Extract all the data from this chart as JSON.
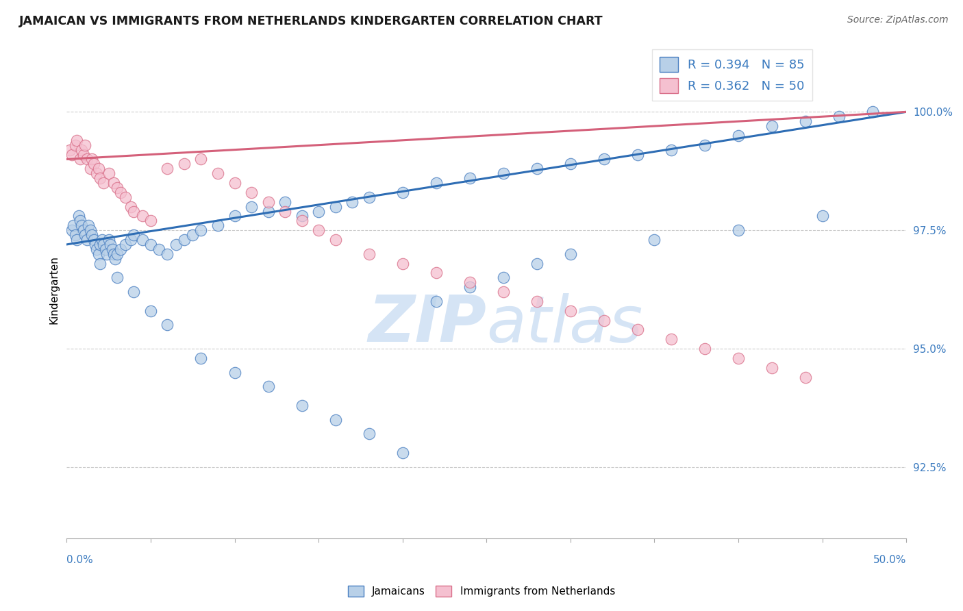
{
  "title": "JAMAICAN VS IMMIGRANTS FROM NETHERLANDS KINDERGARTEN CORRELATION CHART",
  "source": "Source: ZipAtlas.com",
  "ylabel": "Kindergarten",
  "legend1_label": "R = 0.394   N = 85",
  "legend2_label": "R = 0.362   N = 50",
  "blue_fill_color": "#b8d0e8",
  "pink_fill_color": "#f5c0d0",
  "blue_edge_color": "#4a7fc1",
  "pink_edge_color": "#d9708a",
  "blue_line_color": "#2e6db4",
  "pink_line_color": "#d4607a",
  "text_color": "#3a7abf",
  "watermark_color": "#d5e4f5",
  "xlim": [
    0.0,
    50.0
  ],
  "ylim": [
    91.0,
    101.5
  ],
  "yticks": [
    100.0,
    97.5,
    95.0,
    92.5
  ],
  "blue_x": [
    0.3,
    0.4,
    0.5,
    0.6,
    0.7,
    0.8,
    0.9,
    1.0,
    1.1,
    1.2,
    1.3,
    1.4,
    1.5,
    1.6,
    1.7,
    1.8,
    1.9,
    2.0,
    2.1,
    2.2,
    2.3,
    2.4,
    2.5,
    2.6,
    2.7,
    2.8,
    2.9,
    3.0,
    3.2,
    3.5,
    3.8,
    4.0,
    4.5,
    5.0,
    5.5,
    6.0,
    6.5,
    7.0,
    7.5,
    8.0,
    9.0,
    10.0,
    11.0,
    12.0,
    13.0,
    14.0,
    15.0,
    16.0,
    17.0,
    18.0,
    20.0,
    22.0,
    24.0,
    26.0,
    28.0,
    30.0,
    32.0,
    34.0,
    36.0,
    38.0,
    40.0,
    42.0,
    44.0,
    46.0,
    48.0,
    2.0,
    3.0,
    4.0,
    5.0,
    6.0,
    8.0,
    10.0,
    12.0,
    14.0,
    16.0,
    18.0,
    20.0,
    22.0,
    24.0,
    26.0,
    28.0,
    30.0,
    35.0,
    40.0,
    45.0
  ],
  "blue_y": [
    97.5,
    97.6,
    97.4,
    97.3,
    97.8,
    97.7,
    97.6,
    97.5,
    97.4,
    97.3,
    97.6,
    97.5,
    97.4,
    97.3,
    97.2,
    97.1,
    97.0,
    97.2,
    97.3,
    97.2,
    97.1,
    97.0,
    97.3,
    97.2,
    97.1,
    97.0,
    96.9,
    97.0,
    97.1,
    97.2,
    97.3,
    97.4,
    97.3,
    97.2,
    97.1,
    97.0,
    97.2,
    97.3,
    97.4,
    97.5,
    97.6,
    97.8,
    98.0,
    97.9,
    98.1,
    97.8,
    97.9,
    98.0,
    98.1,
    98.2,
    98.3,
    98.5,
    98.6,
    98.7,
    98.8,
    98.9,
    99.0,
    99.1,
    99.2,
    99.3,
    99.5,
    99.7,
    99.8,
    99.9,
    100.0,
    96.8,
    96.5,
    96.2,
    95.8,
    95.5,
    94.8,
    94.5,
    94.2,
    93.8,
    93.5,
    93.2,
    92.8,
    96.0,
    96.3,
    96.5,
    96.8,
    97.0,
    97.3,
    97.5,
    97.8
  ],
  "pink_x": [
    0.2,
    0.3,
    0.5,
    0.6,
    0.8,
    0.9,
    1.0,
    1.1,
    1.2,
    1.4,
    1.5,
    1.6,
    1.8,
    1.9,
    2.0,
    2.2,
    2.5,
    2.8,
    3.0,
    3.2,
    3.5,
    3.8,
    4.0,
    4.5,
    5.0,
    6.0,
    7.0,
    8.0,
    9.0,
    10.0,
    11.0,
    12.0,
    13.0,
    14.0,
    15.0,
    16.0,
    18.0,
    20.0,
    22.0,
    24.0,
    26.0,
    28.0,
    30.0,
    32.0,
    34.0,
    36.0,
    38.0,
    40.0,
    42.0,
    44.0
  ],
  "pink_y": [
    99.2,
    99.1,
    99.3,
    99.4,
    99.0,
    99.2,
    99.1,
    99.3,
    99.0,
    98.8,
    99.0,
    98.9,
    98.7,
    98.8,
    98.6,
    98.5,
    98.7,
    98.5,
    98.4,
    98.3,
    98.2,
    98.0,
    97.9,
    97.8,
    97.7,
    98.8,
    98.9,
    99.0,
    98.7,
    98.5,
    98.3,
    98.1,
    97.9,
    97.7,
    97.5,
    97.3,
    97.0,
    96.8,
    96.6,
    96.4,
    96.2,
    96.0,
    95.8,
    95.6,
    95.4,
    95.2,
    95.0,
    94.8,
    94.6,
    94.4
  ],
  "blue_trend_x0": 0.0,
  "blue_trend_y0": 97.2,
  "blue_trend_x1": 50.0,
  "blue_trend_y1": 100.0,
  "pink_trend_x0": 0.0,
  "pink_trend_y0": 99.0,
  "pink_trend_x1": 50.0,
  "pink_trend_y1": 100.0
}
